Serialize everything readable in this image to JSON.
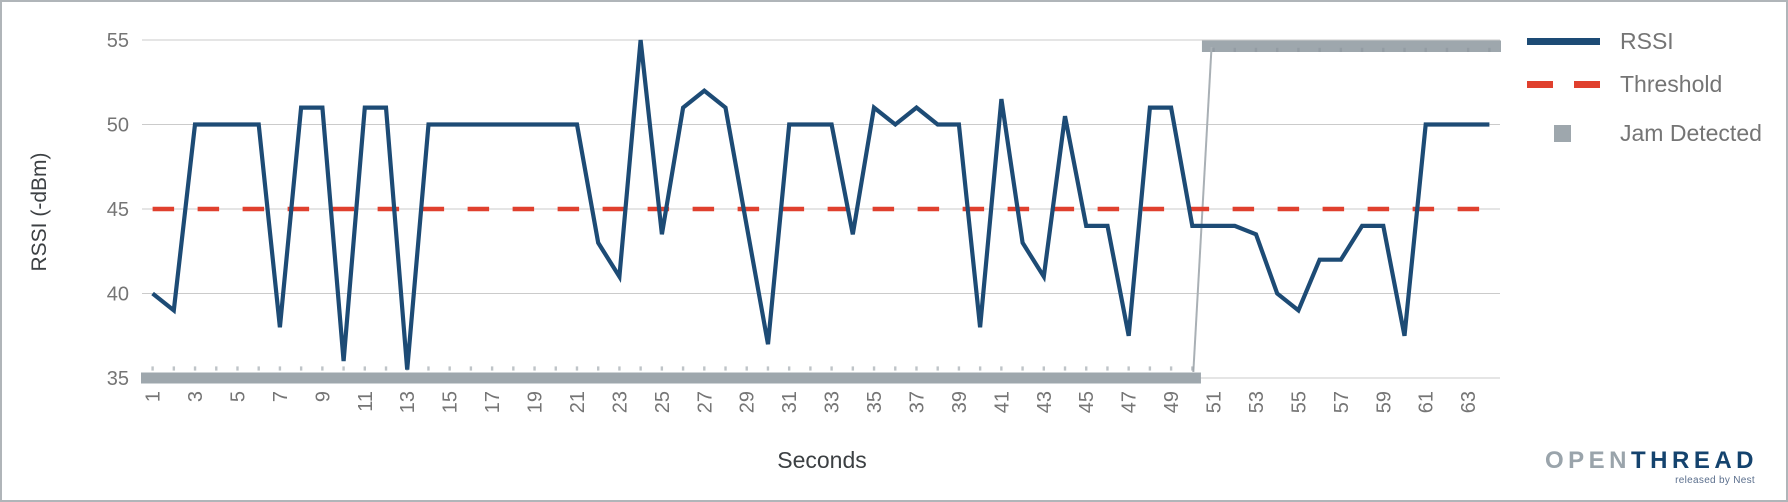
{
  "chart_data": {
    "type": "line",
    "title": "",
    "xlabel": "Seconds",
    "ylabel": "RSSI (-dBm)",
    "xlim": [
      1,
      64
    ],
    "ylim": [
      35,
      55
    ],
    "grid": "horizontal",
    "yticks": [
      55,
      50,
      45,
      40,
      35
    ],
    "xticks": [
      1,
      3,
      5,
      7,
      9,
      11,
      13,
      15,
      17,
      19,
      21,
      23,
      25,
      27,
      29,
      31,
      33,
      35,
      37,
      39,
      41,
      43,
      45,
      47,
      49,
      51,
      53,
      55,
      57,
      59,
      61,
      63
    ],
    "seconds_start": 1,
    "series": [
      {
        "name": "RSSI",
        "type": "line",
        "color": "#1d4b75",
        "values": [
          40,
          39,
          50,
          50,
          50,
          50,
          38,
          51,
          51,
          36,
          51,
          51,
          35.5,
          50,
          50,
          50,
          50,
          50,
          50,
          50,
          50,
          43,
          41,
          55,
          43.5,
          51,
          52,
          51,
          44,
          37,
          50,
          50,
          50,
          43.5,
          51,
          50,
          51,
          50,
          50,
          38,
          51.5,
          43,
          41,
          50.5,
          44,
          44,
          37.5,
          51,
          51,
          44,
          44,
          44,
          43.5,
          40,
          39,
          42,
          42,
          44,
          44,
          37.5,
          50,
          50,
          50,
          50
        ]
      },
      {
        "name": "Threshold",
        "type": "dashed-line",
        "color": "#e0402e",
        "value": 45
      },
      {
        "name": "Jam Detected",
        "type": "step-band",
        "color": "#9ea7ad",
        "low_value": 35,
        "high_value": 55,
        "low_until_second": 50,
        "high_from_second": 51
      }
    ],
    "legend_position": "top-right"
  },
  "legend": {
    "items": [
      {
        "label": "RSSI",
        "marker": "line"
      },
      {
        "label": "Threshold",
        "marker": "dashes"
      },
      {
        "label": "Jam Detected",
        "marker": "square"
      }
    ]
  },
  "logo": {
    "open": "OPEN",
    "thread": "THREAD",
    "tagline": "released by Nest"
  },
  "colors": {
    "rssi_line": "#1d4b75",
    "threshold_line": "#e0402e",
    "jam_bar": "#9ea7ad",
    "jam_connector": "#a9b0b5",
    "gridline": "#cbcbcb",
    "tick_text": "#757575",
    "axis_title_text": "#3c4043",
    "bar_notch": "#8a949b"
  }
}
